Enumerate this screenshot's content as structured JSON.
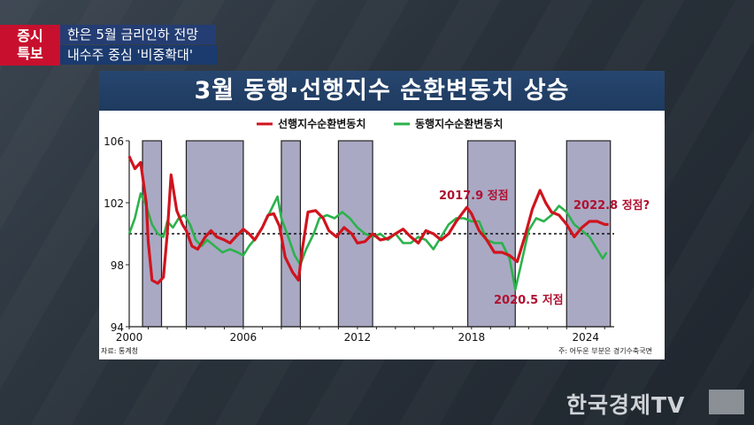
{
  "banner": {
    "badge_line1": "증시",
    "badge_line2": "특보",
    "headline1": "한은 5월 금리인하 전망",
    "headline2": "내수주 중심 '비중확대'"
  },
  "broadcaster": "한국경제TV",
  "chart_data": {
    "type": "line",
    "title": "3월 동행·선행지수 순환변동치 상승",
    "ylim": [
      94,
      106
    ],
    "yticks": [
      94,
      98,
      102,
      106
    ],
    "xlim": [
      2000,
      2025.5
    ],
    "xticks": [
      2000,
      2006,
      2012,
      2018,
      2024
    ],
    "reference_line": 100,
    "grid": false,
    "legend_position": "top",
    "source_note": "자료: 통계청",
    "footnote": "주: 어두운 부분은 경기수축국면",
    "recession_shading": [
      [
        2000.7,
        2001.7
      ],
      [
        2003.0,
        2006.0
      ],
      [
        2008.0,
        2009.0
      ],
      [
        2011.0,
        2012.8
      ],
      [
        2017.8,
        2020.3
      ],
      [
        2023.0,
        2025.3
      ]
    ],
    "annotations": [
      {
        "text": "2017.9 정점",
        "x": 2017.75,
        "y": 101.7,
        "color": "#b01030"
      },
      {
        "text": "2020.5 저점",
        "x": 2020.4,
        "y": 98.2,
        "color": "#b01030"
      },
      {
        "text": "2022.8 정점?",
        "x": 2022.6,
        "y": 101.0,
        "color": "#b01030"
      }
    ],
    "series": [
      {
        "name": "선행지수순환변동치",
        "color": "#d0141e",
        "x": [
          2000.0,
          2000.3,
          2000.6,
          2000.9,
          2001.0,
          2001.2,
          2001.5,
          2001.8,
          2002.0,
          2002.2,
          2002.5,
          2002.8,
          2003.0,
          2003.3,
          2003.6,
          2004.0,
          2004.3,
          2004.6,
          2005.0,
          2005.3,
          2005.6,
          2006.0,
          2006.3,
          2006.6,
          2007.0,
          2007.3,
          2007.6,
          2007.9,
          2008.2,
          2008.6,
          2008.9,
          2009.1,
          2009.4,
          2009.8,
          2010.2,
          2010.5,
          2010.9,
          2011.3,
          2011.7,
          2012.0,
          2012.4,
          2012.8,
          2013.2,
          2013.6,
          2014.0,
          2014.4,
          2014.8,
          2015.2,
          2015.6,
          2016.0,
          2016.4,
          2016.8,
          2017.2,
          2017.5,
          2017.75,
          2018.0,
          2018.4,
          2018.8,
          2019.2,
          2019.6,
          2020.0,
          2020.4,
          2020.8,
          2021.2,
          2021.6,
          2021.9,
          2022.2,
          2022.6,
          2023.0,
          2023.4,
          2023.8,
          2024.2,
          2024.6,
          2025.0,
          2025.2
        ],
        "values": [
          105.0,
          104.2,
          104.6,
          102.0,
          99.5,
          97.0,
          96.8,
          97.2,
          100.0,
          103.8,
          101.5,
          100.6,
          100.2,
          99.2,
          99.0,
          99.8,
          100.2,
          99.8,
          99.6,
          99.4,
          99.8,
          100.3,
          100.0,
          99.6,
          100.4,
          101.2,
          101.3,
          100.5,
          98.5,
          97.5,
          97.0,
          99.0,
          101.4,
          101.5,
          101.0,
          100.2,
          99.8,
          100.4,
          100.0,
          99.4,
          99.5,
          100.0,
          99.6,
          99.7,
          100.0,
          100.3,
          99.8,
          99.4,
          100.2,
          100.0,
          99.6,
          100.0,
          100.8,
          101.3,
          101.7,
          101.3,
          100.2,
          99.6,
          98.8,
          98.8,
          98.6,
          98.2,
          99.8,
          101.6,
          102.8,
          102.0,
          101.4,
          101.2,
          100.6,
          99.8,
          100.4,
          100.8,
          100.8,
          100.6,
          100.6
        ]
      },
      {
        "name": "동행지수순환변동치",
        "color": "#2bb24c",
        "x": [
          2000.0,
          2000.3,
          2000.6,
          2000.9,
          2001.2,
          2001.5,
          2001.8,
          2002.0,
          2002.3,
          2002.6,
          2002.9,
          2003.2,
          2003.5,
          2003.8,
          2004.1,
          2004.5,
          2004.9,
          2005.3,
          2005.7,
          2006.0,
          2006.3,
          2006.7,
          2007.0,
          2007.4,
          2007.8,
          2008.0,
          2008.3,
          2008.7,
          2009.0,
          2009.3,
          2009.7,
          2010.0,
          2010.4,
          2010.8,
          2011.2,
          2011.6,
          2012.0,
          2012.4,
          2012.8,
          2013.2,
          2013.6,
          2014.0,
          2014.4,
          2014.8,
          2015.2,
          2015.6,
          2016.0,
          2016.4,
          2016.8,
          2017.2,
          2017.6,
          2018.0,
          2018.4,
          2018.8,
          2019.2,
          2019.6,
          2020.0,
          2020.3,
          2020.6,
          2021.0,
          2021.4,
          2021.8,
          2022.2,
          2022.6,
          2023.0,
          2023.4,
          2023.8,
          2024.2,
          2024.6,
          2024.9,
          2025.1
        ],
        "values": [
          100.0,
          101.0,
          102.6,
          101.8,
          100.6,
          100.0,
          99.8,
          100.8,
          100.4,
          101.0,
          101.2,
          100.6,
          99.6,
          99.2,
          99.6,
          99.2,
          98.8,
          99.0,
          98.8,
          98.6,
          99.2,
          99.8,
          100.4,
          101.4,
          102.4,
          101.0,
          100.0,
          98.6,
          98.0,
          99.0,
          100.0,
          101.0,
          101.2,
          101.0,
          101.4,
          101.0,
          100.4,
          100.0,
          99.8,
          100.0,
          99.6,
          100.0,
          99.4,
          99.4,
          99.8,
          99.6,
          99.0,
          99.8,
          100.6,
          101.0,
          101.0,
          100.8,
          100.8,
          99.6,
          99.4,
          99.4,
          98.4,
          96.4,
          98.0,
          100.2,
          101.0,
          100.8,
          101.2,
          101.8,
          101.4,
          100.6,
          100.2,
          99.8,
          99.0,
          98.4,
          98.8
        ]
      }
    ]
  }
}
